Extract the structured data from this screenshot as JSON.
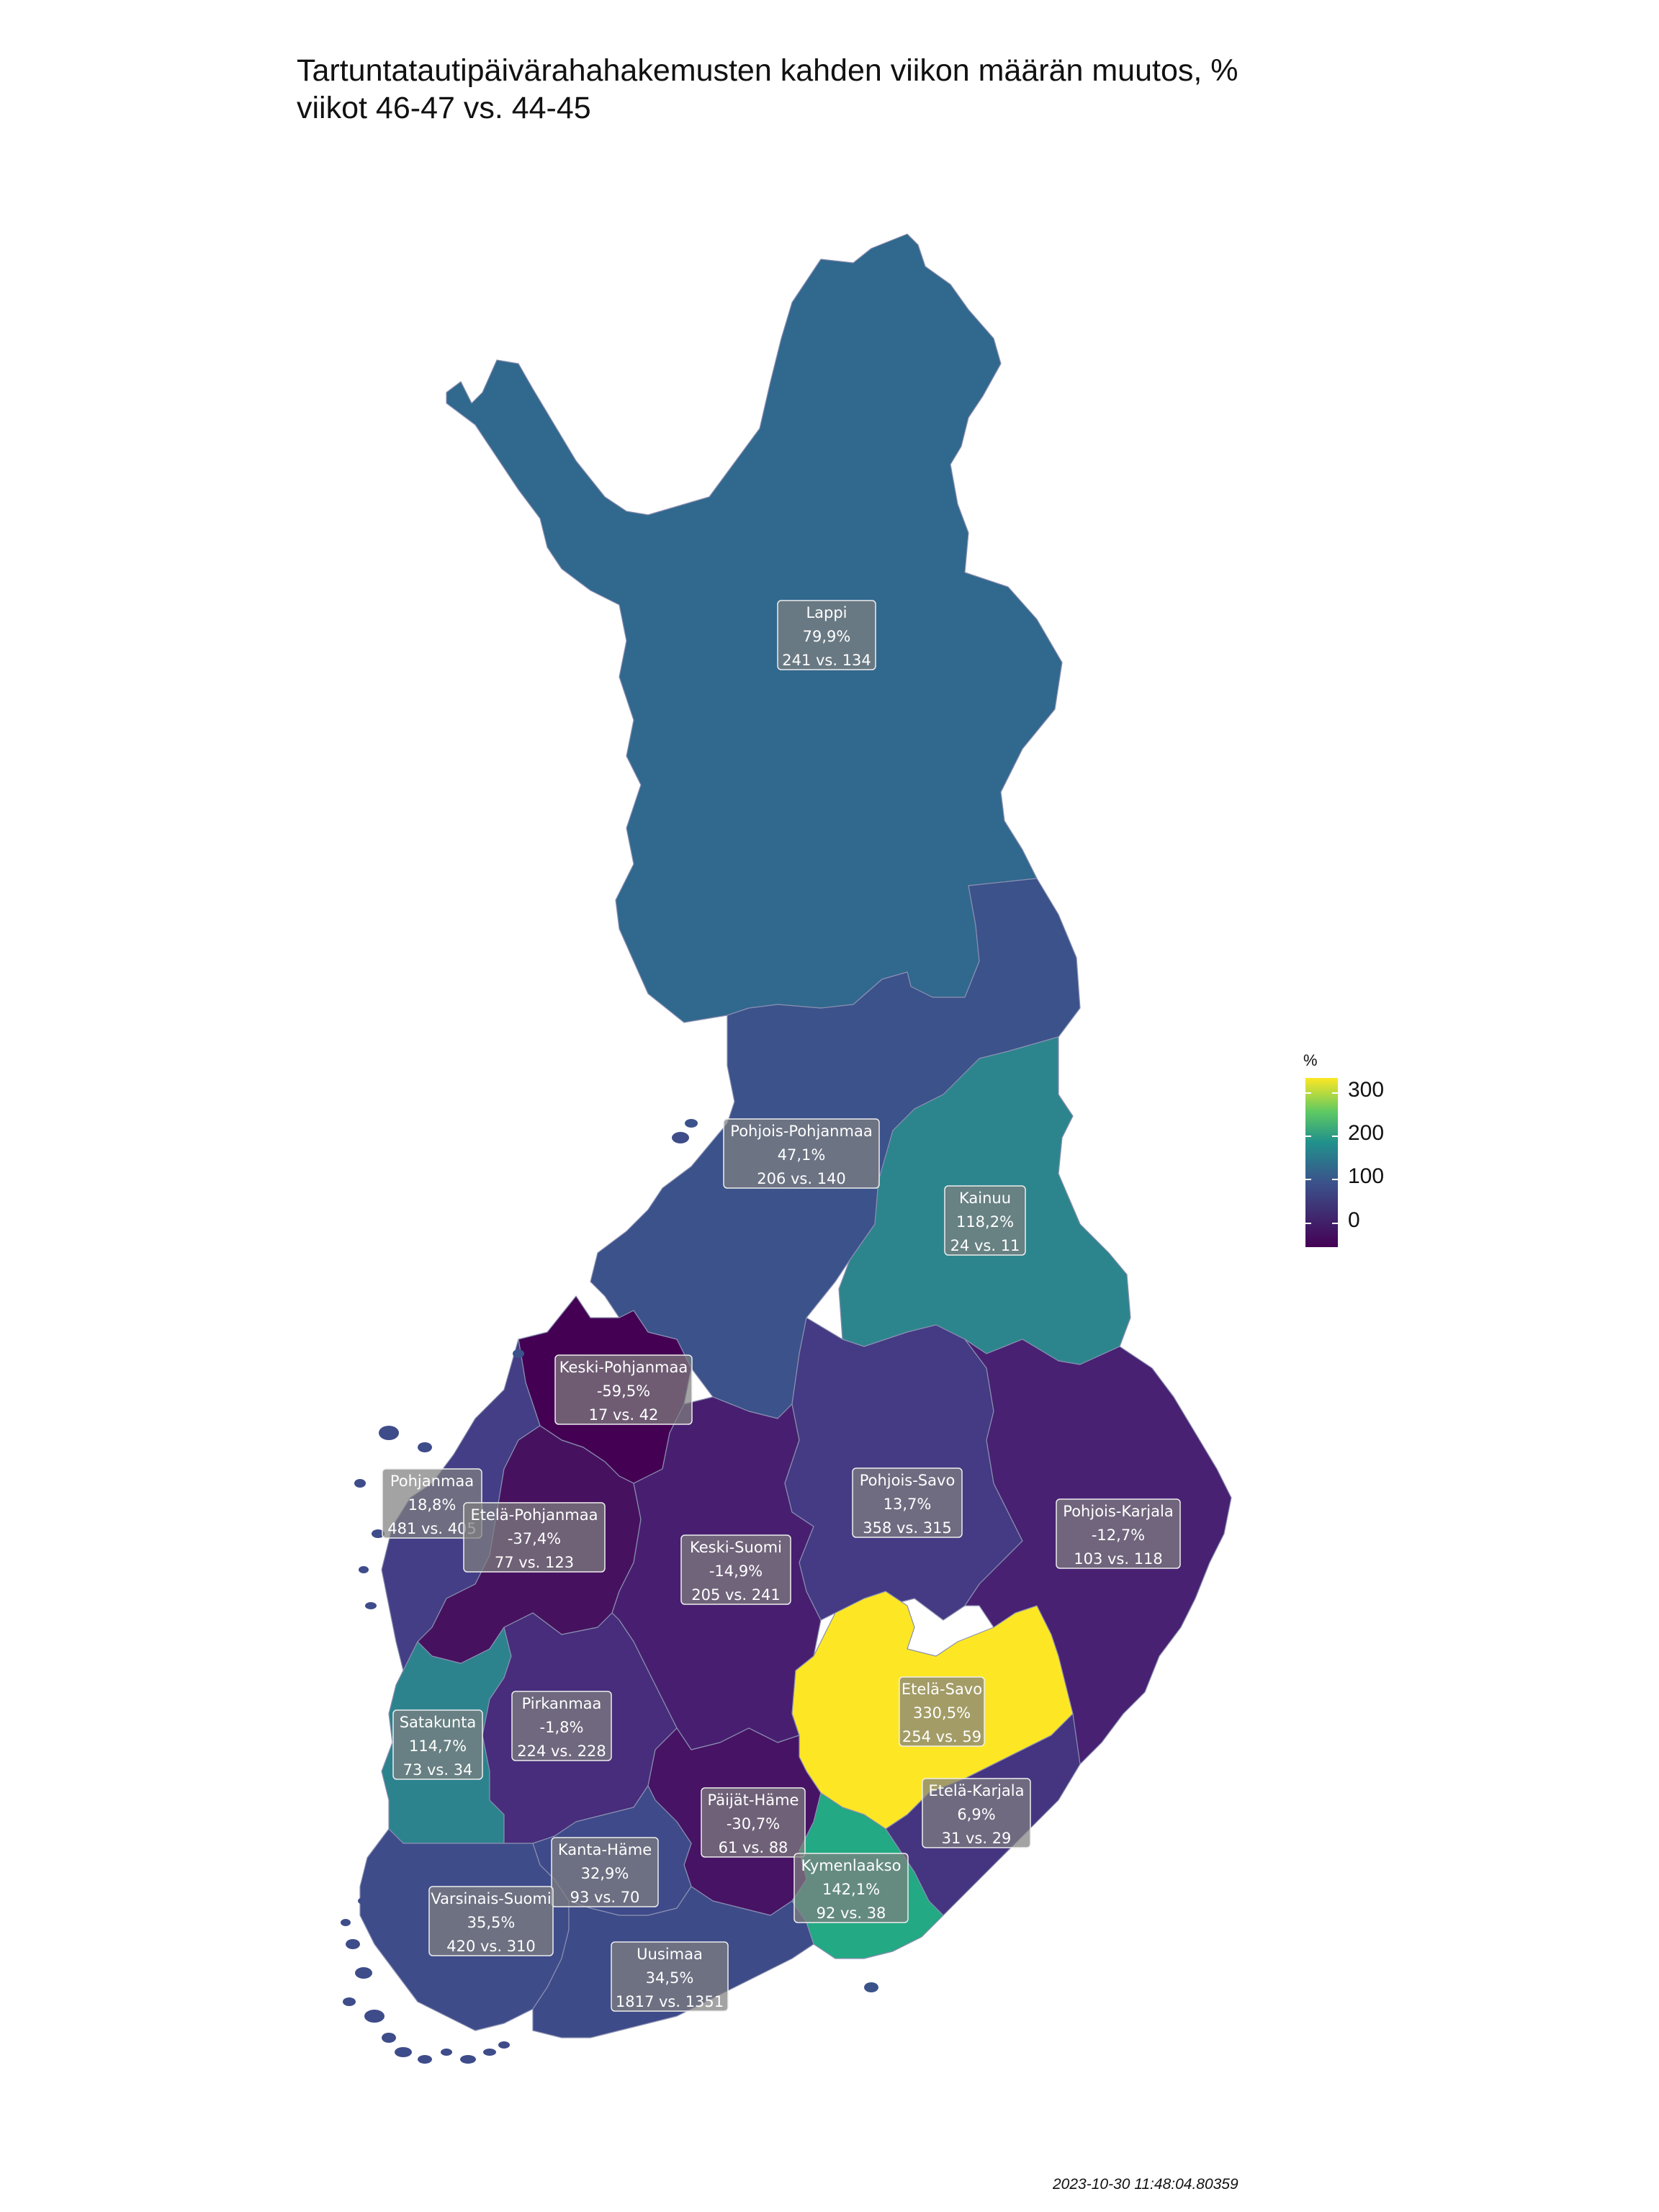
{
  "title": "Tartuntatautipäivärahahakemusten kahden viikon määrän muutos, %\nviikot 46-47 vs. 44-45",
  "legend": {
    "title": "%",
    "ticks": [
      "300",
      "200",
      "100",
      "0"
    ],
    "colors": [
      "#fde725",
      "#5ec962",
      "#21918c",
      "#3b528b",
      "#440154"
    ]
  },
  "timestamp": "2023-10-30 11:48:04.80359",
  "regions": [
    {
      "name": "Lappi",
      "pct": "79,9%",
      "counts": "241 vs. 134",
      "value": 79.9,
      "color": "#31688e"
    },
    {
      "name": "Pohjois-Pohjanmaa",
      "pct": "47,1%",
      "counts": "206 vs. 140",
      "value": 47.1,
      "color": "#3b528b"
    },
    {
      "name": "Kainuu",
      "pct": "118,2%",
      "counts": "24 vs. 11",
      "value": 118.2,
      "color": "#2c858d"
    },
    {
      "name": "Keski-Pohjanmaa",
      "pct": "-59,5%",
      "counts": "17 vs. 42",
      "value": -59.5,
      "color": "#440154"
    },
    {
      "name": "Pohjanmaa",
      "pct": "18,8%",
      "counts": "481 vs. 405",
      "value": 18.8,
      "color": "#433e85"
    },
    {
      "name": "Etelä-Pohjanmaa",
      "pct": "-37,4%",
      "counts": "77 vs. 123",
      "value": -37.4,
      "color": "#46125f"
    },
    {
      "name": "Keski-Suomi",
      "pct": "-14,9%",
      "counts": "205 vs. 241",
      "value": -14.9,
      "color": "#481f70"
    },
    {
      "name": "Pohjois-Savo",
      "pct": "13,7%",
      "counts": "358 vs. 315",
      "value": 13.7,
      "color": "#443b84"
    },
    {
      "name": "Pohjois-Karjala",
      "pct": "-12,7%",
      "counts": "103 vs. 118",
      "value": -12.7,
      "color": "#482173"
    },
    {
      "name": "Satakunta",
      "pct": "114,7%",
      "counts": "73 vs. 34",
      "value": 114.7,
      "color": "#2c838e"
    },
    {
      "name": "Pirkanmaa",
      "pct": "-1,8%",
      "counts": "224 vs. 228",
      "value": -1.8,
      "color": "#472d7b"
    },
    {
      "name": "Etelä-Savo",
      "pct": "330,5%",
      "counts": "254 vs. 59",
      "value": 330.5,
      "color": "#fde725"
    },
    {
      "name": "Päijät-Häme",
      "pct": "-30,7%",
      "counts": "61 vs. 88",
      "value": -30.7,
      "color": "#471365"
    },
    {
      "name": "Etelä-Karjala",
      "pct": "6,9%",
      "counts": "31 vs. 29",
      "value": 6.9,
      "color": "#453581"
    },
    {
      "name": "Kanta-Häme",
      "pct": "32,9%",
      "counts": "93 vs. 70",
      "value": 32.9,
      "color": "#3e4a89"
    },
    {
      "name": "Kymenlaakso",
      "pct": "142,1%",
      "counts": "92 vs. 38",
      "value": 142.1,
      "color": "#23a983"
    },
    {
      "name": "Varsinais-Suomi",
      "pct": "35,5%",
      "counts": "420 vs. 310",
      "value": 35.5,
      "color": "#3e4c8a"
    },
    {
      "name": "Uusimaa",
      "pct": "34,5%",
      "counts": "1817 vs. 1351",
      "value": 34.5,
      "color": "#3e4b89"
    }
  ]
}
